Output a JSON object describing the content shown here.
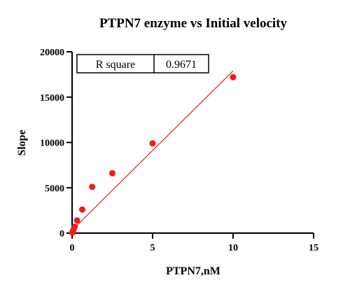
{
  "chart_data": {
    "type": "scatter",
    "title": "PTPN7 enzyme vs Initial velocity",
    "xlabel": "PTPN7,nM",
    "ylabel": "Slope",
    "xlim": [
      0,
      15
    ],
    "ylim": [
      0,
      20000
    ],
    "x_ticks": [
      0,
      5,
      10,
      15
    ],
    "y_ticks": [
      0,
      5000,
      10000,
      15000,
      20000
    ],
    "grid": false,
    "points": [
      {
        "x": 0.02,
        "y": 50
      },
      {
        "x": 0.04,
        "y": 150
      },
      {
        "x": 0.08,
        "y": 350
      },
      {
        "x": 0.16,
        "y": 700
      },
      {
        "x": 0.31,
        "y": 1400
      },
      {
        "x": 0.63,
        "y": 2600
      },
      {
        "x": 1.25,
        "y": 5100
      },
      {
        "x": 2.5,
        "y": 6600
      },
      {
        "x": 5,
        "y": 9900
      },
      {
        "x": 10,
        "y": 17200
      }
    ],
    "fit_line": {
      "x": [
        0.1,
        10
      ],
      "y": [
        500,
        17900
      ]
    },
    "colors": {
      "points": "#ee1c1c",
      "fit_line": "#ee1c1c",
      "axis": "#000000"
    },
    "stats_table": {
      "label": "R square",
      "value": "0.9671"
    }
  }
}
